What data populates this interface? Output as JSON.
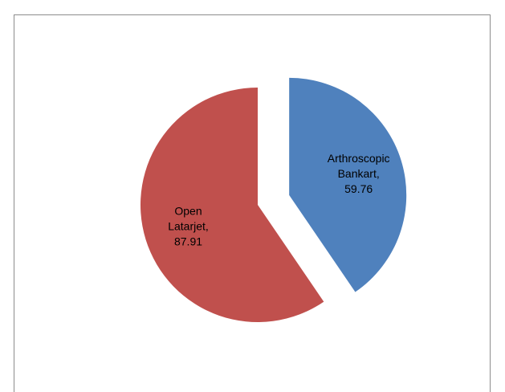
{
  "chart_data": {
    "type": "pie",
    "title": "",
    "slices": [
      {
        "name": "Arthroscopic Bankart",
        "value": 59.76,
        "label_lines": [
          "Arthroscopic",
          "Bankart,",
          "59.76"
        ],
        "color": "#4f81bd",
        "exploded": true
      },
      {
        "name": "Open Latarjet",
        "value": 87.91,
        "label_lines": [
          "Open",
          "Latarjet,",
          "87.91"
        ],
        "color": "#c0504d",
        "exploded": false
      }
    ],
    "start_angle_deg": 0,
    "direction": "clockwise",
    "legend": "none"
  }
}
